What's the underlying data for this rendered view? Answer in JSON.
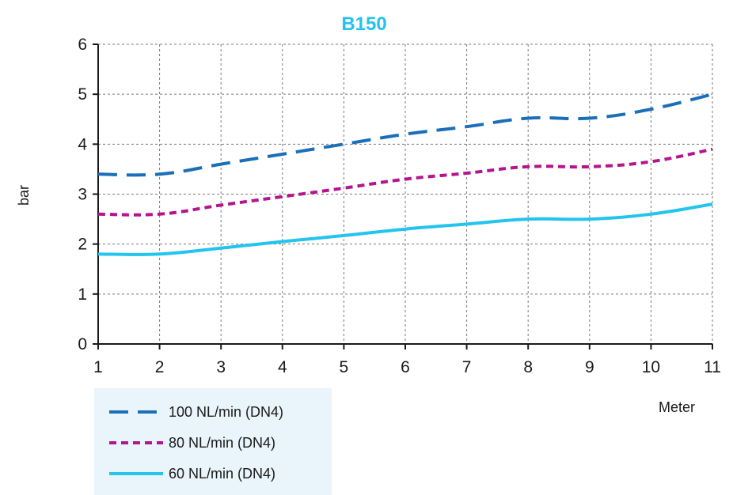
{
  "chart_data": {
    "type": "line",
    "title": "B150",
    "xlabel": "Meter",
    "ylabel": "bar",
    "x": [
      1,
      2,
      3,
      4,
      5,
      6,
      7,
      8,
      9,
      10,
      11
    ],
    "x_tick_labels": [
      "1",
      "2",
      "3",
      "4",
      "5",
      "6",
      "7",
      "8",
      "9",
      "10",
      "11"
    ],
    "y_tick_labels": [
      "0",
      "1",
      "2",
      "3",
      "4",
      "5",
      "6"
    ],
    "xlim": [
      1,
      11
    ],
    "ylim": [
      0,
      6
    ],
    "grid": true,
    "legend_position": "bottom-left",
    "series": [
      {
        "name": "100 NL/min (DN4)",
        "color": "#1a6fb8",
        "style": "long-dash",
        "values": [
          3.4,
          3.4,
          3.6,
          3.8,
          4.0,
          4.2,
          4.35,
          4.52,
          4.52,
          4.7,
          5.0
        ]
      },
      {
        "name": "80 NL/min (DN4)",
        "color": "#b5148f",
        "style": "short-dash",
        "values": [
          2.6,
          2.6,
          2.78,
          2.95,
          3.12,
          3.3,
          3.42,
          3.55,
          3.55,
          3.65,
          3.9
        ]
      },
      {
        "name": "60 NL/min (DN4)",
        "color": "#23c4ee",
        "style": "solid",
        "values": [
          1.8,
          1.8,
          1.92,
          2.05,
          2.17,
          2.3,
          2.4,
          2.5,
          2.5,
          2.6,
          2.8
        ]
      }
    ]
  },
  "colors": {
    "title": "#22c3ee",
    "legend_background": "#e9f5fa",
    "axis": "#1a1a1a",
    "grid": "#7a7a7a"
  }
}
